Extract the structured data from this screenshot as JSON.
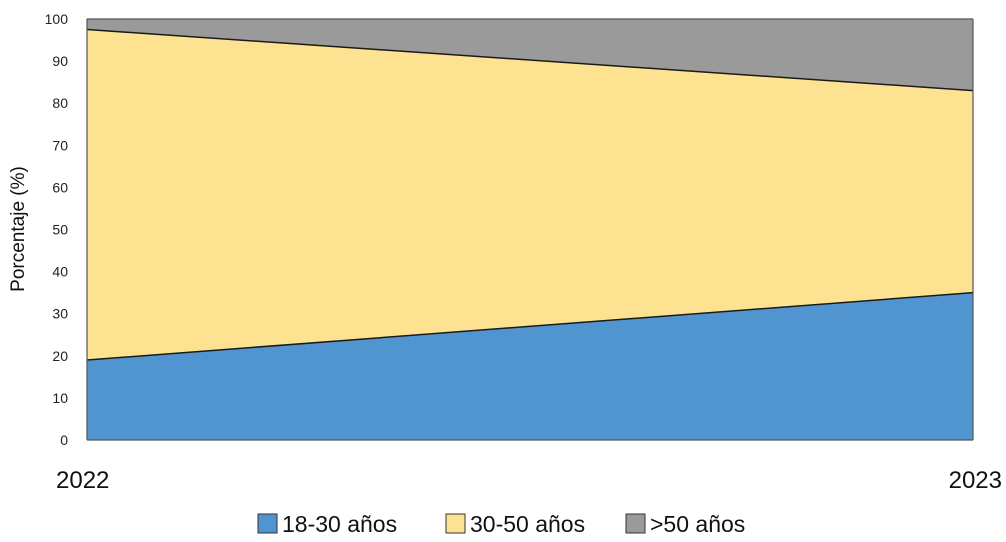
{
  "chart_data": {
    "type": "area",
    "stacked": true,
    "title": "",
    "xlabel": "",
    "ylabel": "Porcentaje (%)",
    "x": [
      "2022",
      "2023"
    ],
    "ylim": [
      0,
      100
    ],
    "yticks": [
      "0",
      "10",
      "20",
      "30",
      "40",
      "50",
      "60",
      "70",
      "80",
      "90",
      "100"
    ],
    "series": [
      {
        "name": "18-30 años",
        "values": [
          19,
          35
        ],
        "color": "#5094d0"
      },
      {
        "name": "30-50 años",
        "values": [
          78.5,
          48
        ],
        "color": "#fde391"
      },
      {
        "name": ">50 años",
        "values": [
          2.5,
          17
        ],
        "color": "#9a9a9a"
      }
    ],
    "grid": false,
    "legend": "bottom"
  }
}
